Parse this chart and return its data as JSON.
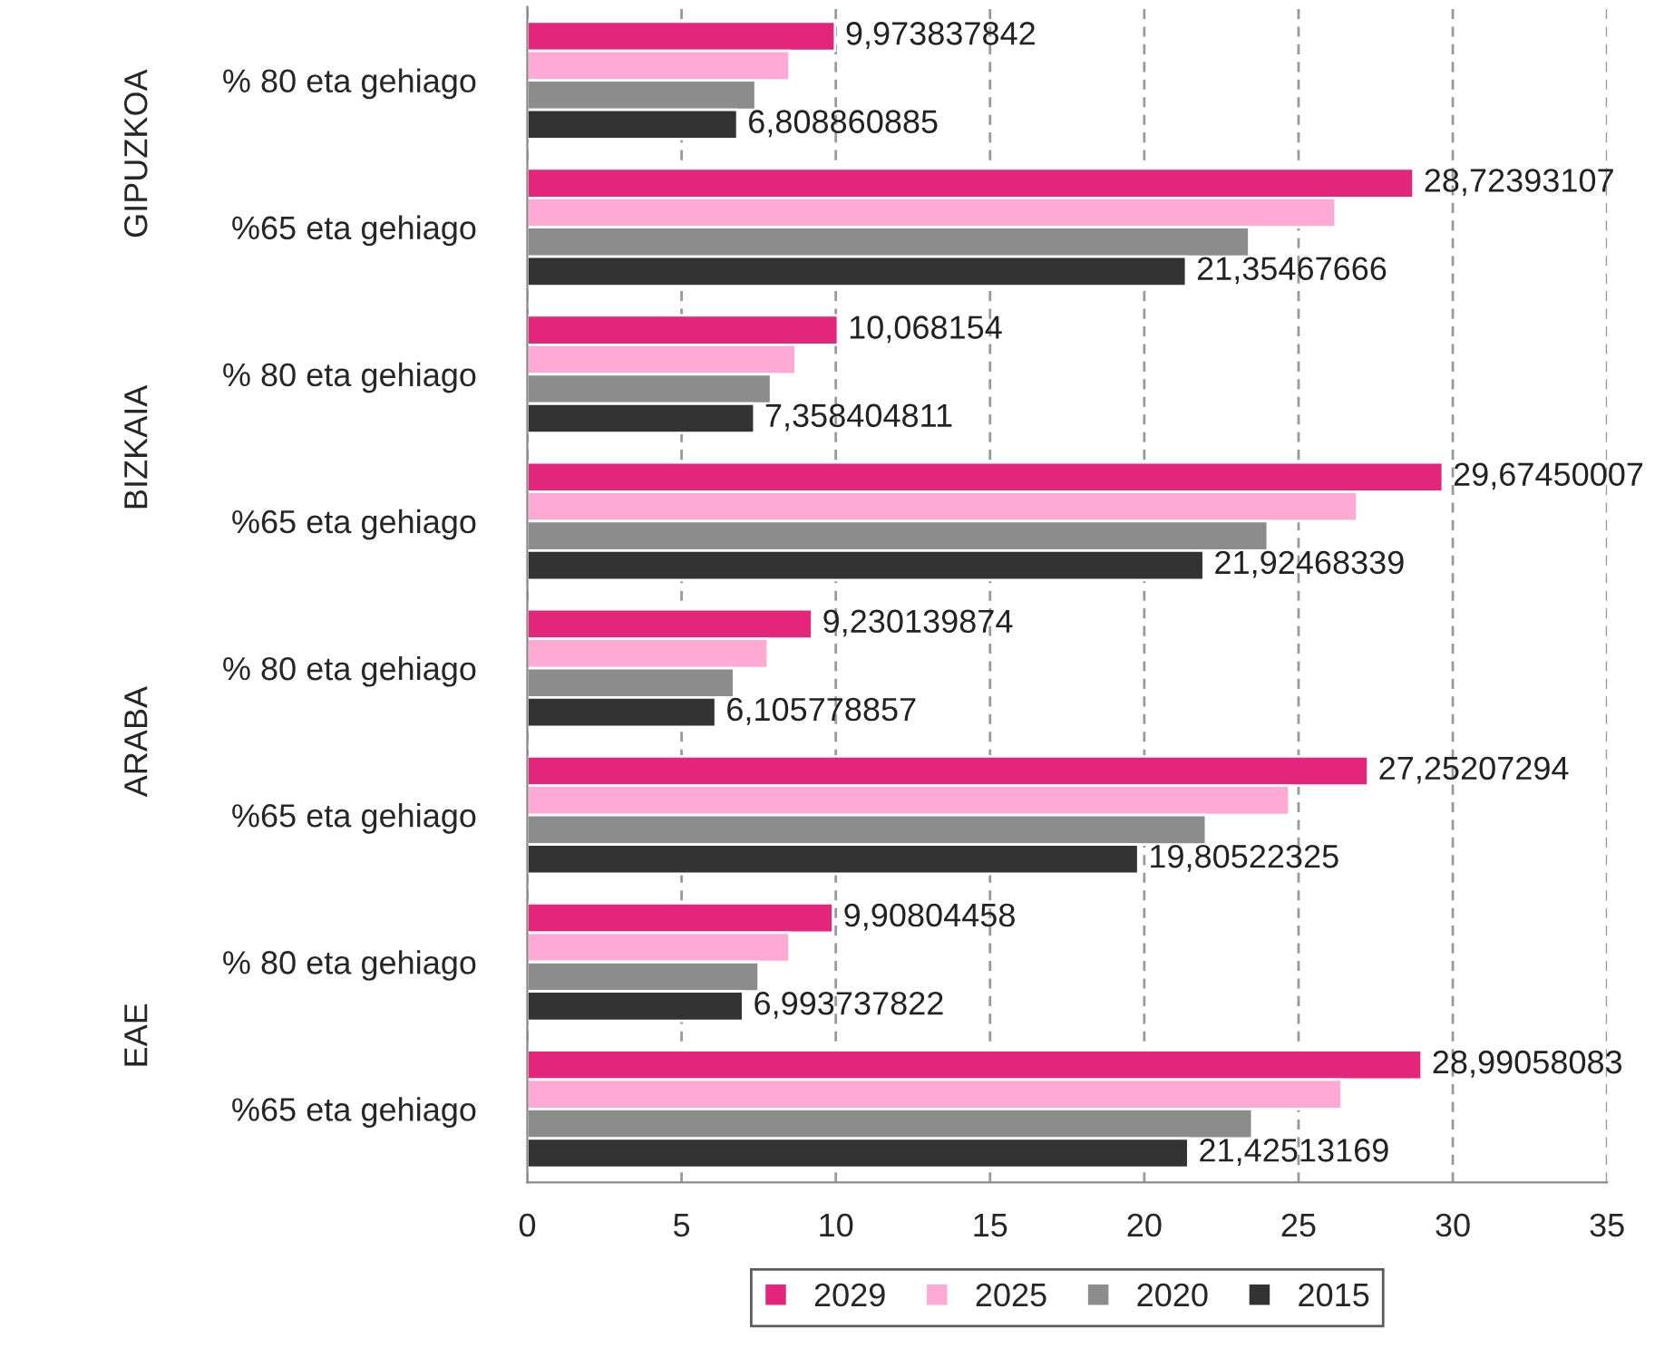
{
  "chart_data": {
    "type": "bar",
    "orientation": "horizontal",
    "categories": [
      "% 80 eta gehiago",
      "%65 eta gehiago",
      "% 80 eta gehiago",
      "%65 eta gehiago",
      "% 80 eta gehiago",
      "%65 eta gehiago",
      "% 80 eta gehiago",
      "%65 eta gehiago"
    ],
    "annotations": [
      "GIPUZKOA",
      "BIZKAIA",
      "ARABA",
      "EAE"
    ],
    "series": [
      {
        "name": "2029",
        "color": "#e3257b",
        "values": [
          9.973837842,
          28.72393107,
          10.068154,
          29.67450007,
          9.230139874,
          27.25207294,
          9.90804458,
          28.99058083
        ],
        "value_labels": [
          "9,973837842",
          "28,72393107",
          "10,068154",
          "29,67450007",
          "9,230139874",
          "27,25207294",
          "9,90804458",
          "28,99058083"
        ]
      },
      {
        "name": "2025",
        "color": "#ffaad4",
        "values": [
          8.5,
          26.2,
          8.7,
          26.9,
          7.8,
          24.7,
          8.5,
          26.4
        ]
      },
      {
        "name": "2020",
        "color": "#8c8c8c",
        "values": [
          7.4,
          23.4,
          7.9,
          24.0,
          6.7,
          22.0,
          7.5,
          23.5
        ]
      },
      {
        "name": "2015",
        "color": "#333333",
        "values": [
          6.808860885,
          21.35467666,
          7.358404811,
          21.92468339,
          6.105778857,
          19.80522325,
          6.993737822,
          21.42513169
        ],
        "value_labels": [
          "6,808860885",
          "21,35467666",
          "7,358404811",
          "21,92468339",
          "6,105778857",
          "19,80522325",
          "6,993737822",
          "21,42513169"
        ]
      }
    ],
    "xlim": [
      0,
      35
    ],
    "xticks": [
      0,
      5,
      10,
      15,
      20,
      25,
      30,
      35
    ],
    "grid": "x",
    "legend": "bottom"
  }
}
